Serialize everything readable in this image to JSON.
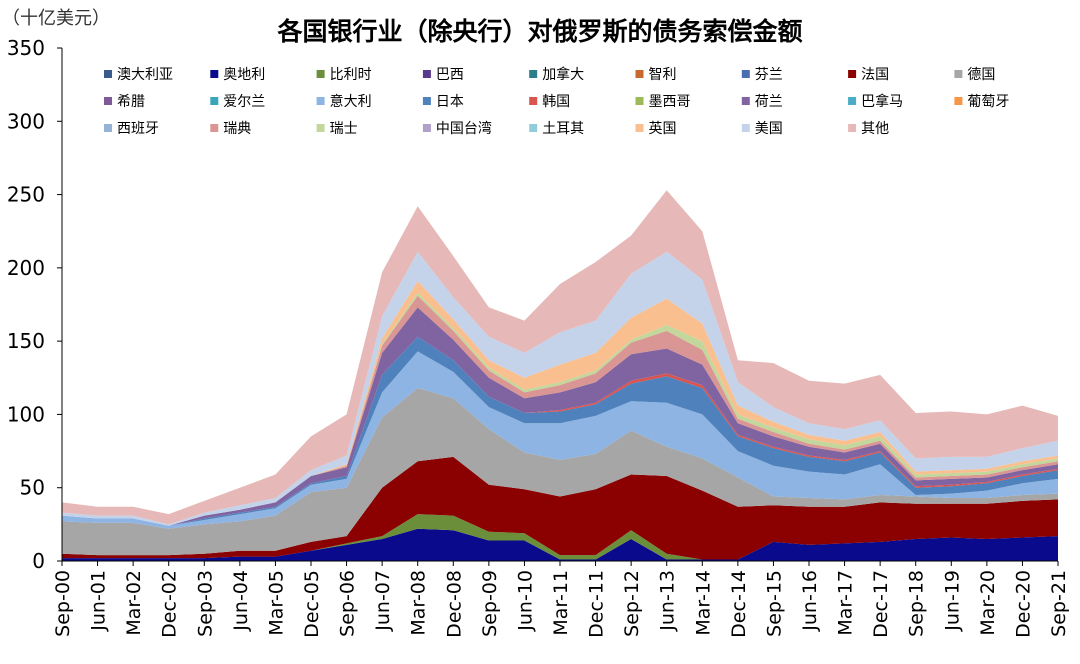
{
  "chart_data": {
    "type": "area",
    "stacked": true,
    "title": "各国银行业（除央行）对俄罗斯的债务索偿金额",
    "unit_label": "（十亿美元）",
    "ylim": [
      0,
      350
    ],
    "yticks": [
      0,
      50,
      100,
      150,
      200,
      250,
      300,
      350
    ],
    "grid": false,
    "legend": "top",
    "x_labels": [
      "Sep-00",
      "Jun-01",
      "Mar-02",
      "Dec-02",
      "Sep-03",
      "Jun-04",
      "Mar-05",
      "Dec-05",
      "Sep-06",
      "Jun-07",
      "Mar-08",
      "Dec-08",
      "Sep-09",
      "Jun-10",
      "Mar-11",
      "Dec-11",
      "Sep-12",
      "Jun-13",
      "Mar-14",
      "Dec-14",
      "Sep-15",
      "Jun-16",
      "Mar-17",
      "Dec-17",
      "Sep-18",
      "Jun-19",
      "Mar-20",
      "Dec-20",
      "Sep-21"
    ],
    "x": [
      0,
      1,
      2,
      3,
      4,
      5,
      6,
      7,
      8,
      9,
      10,
      11,
      12,
      13,
      14,
      15,
      16,
      17,
      18,
      19,
      20,
      21,
      22,
      23,
      24,
      25,
      26,
      27,
      28
    ],
    "series": [
      {
        "name": "澳大利亚",
        "color": "#3a5b8c",
        "values": [
          0,
          0,
          0,
          0,
          0,
          0,
          0,
          0,
          0,
          0,
          0,
          0,
          0,
          0,
          0,
          0,
          0,
          0,
          0,
          0,
          0,
          0,
          0,
          0,
          0,
          0,
          0,
          0,
          0
        ]
      },
      {
        "name": "奥地利",
        "color": "#0a0a8c",
        "values": [
          2,
          2,
          2,
          2,
          2,
          3,
          3,
          7,
          11,
          15,
          22,
          21,
          14,
          14,
          1,
          1,
          15,
          1,
          1,
          1,
          13,
          11,
          12,
          13,
          15,
          16,
          15,
          16,
          17
        ]
      },
      {
        "name": "比利时",
        "color": "#6b8e3a",
        "values": [
          0,
          0,
          0,
          0,
          0,
          0,
          0,
          0,
          1,
          2,
          10,
          10,
          6,
          5,
          3,
          3,
          6,
          4,
          0,
          0,
          0,
          0,
          0,
          0,
          0,
          0,
          0,
          0,
          0
        ]
      },
      {
        "name": "巴西",
        "color": "#5a3a8c",
        "values": [
          0,
          0,
          0,
          0,
          0,
          0,
          0,
          0,
          0,
          0,
          0,
          0,
          0,
          0,
          0,
          0,
          0,
          0,
          0,
          0,
          0,
          0,
          0,
          0,
          0,
          0,
          0,
          0,
          0
        ]
      },
      {
        "name": "加拿大",
        "color": "#2e7d8c",
        "values": [
          0,
          0,
          0,
          0,
          0,
          0,
          0,
          0,
          0,
          0,
          0,
          0,
          0,
          0,
          0,
          0,
          0,
          0,
          0,
          0,
          0,
          0,
          0,
          0,
          0,
          0,
          0,
          0,
          0
        ]
      },
      {
        "name": "智利",
        "color": "#c8692d",
        "values": [
          0,
          0,
          0,
          0,
          0,
          0,
          0,
          0,
          0,
          0,
          0,
          0,
          0,
          0,
          0,
          0,
          0,
          0,
          0,
          0,
          0,
          0,
          0,
          0,
          0,
          0,
          0,
          0,
          0
        ]
      },
      {
        "name": "芬兰",
        "color": "#4a6fb0",
        "values": [
          0,
          0,
          0,
          0,
          0,
          0,
          0,
          0,
          0,
          0,
          0,
          0,
          0,
          0,
          0,
          0,
          0,
          0,
          0,
          0,
          0,
          0,
          0,
          0,
          0,
          0,
          0,
          0,
          0
        ]
      },
      {
        "name": "法国",
        "color": "#8b0000",
        "values": [
          3,
          2,
          2,
          2,
          3,
          4,
          4,
          6,
          5,
          33,
          36,
          40,
          32,
          30,
          40,
          45,
          38,
          53,
          47,
          36,
          25,
          26,
          25,
          27,
          24,
          23,
          24,
          25,
          25
        ]
      },
      {
        "name": "德国",
        "color": "#a6a6a6",
        "values": [
          22,
          22,
          22,
          18,
          20,
          20,
          24,
          34,
          33,
          48,
          50,
          40,
          38,
          25,
          25,
          24,
          30,
          20,
          22,
          20,
          6,
          6,
          5,
          5,
          5,
          4,
          4,
          4,
          4
        ]
      },
      {
        "name": "希腊",
        "color": "#7e5a9b",
        "values": [
          0,
          0,
          0,
          0,
          0,
          0,
          0,
          0,
          0,
          0,
          0,
          0,
          0,
          0,
          0,
          0,
          0,
          0,
          0,
          0,
          0,
          0,
          0,
          0,
          0,
          0,
          0,
          0,
          0
        ]
      },
      {
        "name": "爱尔兰",
        "color": "#3aa6b9",
        "values": [
          0,
          0,
          0,
          0,
          0,
          0,
          0,
          0,
          0,
          0,
          0,
          0,
          0,
          0,
          0,
          0,
          0,
          0,
          0,
          0,
          0,
          0,
          0,
          0,
          0,
          0,
          0,
          0,
          0
        ]
      },
      {
        "name": "意大利",
        "color": "#8db4e2",
        "values": [
          4,
          3,
          3,
          2,
          3,
          5,
          5,
          5,
          6,
          17,
          25,
          18,
          15,
          20,
          25,
          26,
          20,
          30,
          30,
          18,
          21,
          18,
          17,
          21,
          1,
          3,
          5,
          8,
          10
        ]
      },
      {
        "name": "日本",
        "color": "#4f81bd",
        "values": [
          0,
          0,
          0,
          0,
          1,
          1,
          1,
          1,
          2,
          12,
          10,
          8,
          7,
          7,
          8,
          8,
          12,
          18,
          18,
          10,
          12,
          10,
          9,
          8,
          5,
          5,
          5,
          5,
          6
        ]
      },
      {
        "name": "韩国",
        "color": "#d9534f",
        "values": [
          0,
          0,
          0,
          0,
          0,
          0,
          0,
          0,
          0,
          0,
          0,
          0,
          0,
          0,
          1,
          1,
          2,
          2,
          2,
          1,
          1,
          1,
          1,
          1,
          1,
          1,
          1,
          1,
          1
        ]
      },
      {
        "name": "墨西哥",
        "color": "#9bbb59",
        "values": [
          0,
          0,
          0,
          0,
          0,
          0,
          0,
          0,
          0,
          0,
          0,
          0,
          0,
          0,
          0,
          0,
          0,
          0,
          0,
          0,
          0,
          0,
          0,
          0,
          0,
          0,
          0,
          0,
          0
        ]
      },
      {
        "name": "荷兰",
        "color": "#8064a2",
        "values": [
          0,
          0,
          0,
          0,
          2,
          2,
          3,
          5,
          6,
          15,
          20,
          14,
          13,
          10,
          12,
          14,
          18,
          17,
          14,
          8,
          7,
          6,
          5,
          5,
          4,
          4,
          3,
          3,
          3
        ]
      },
      {
        "name": "巴拿马",
        "color": "#4bacc6",
        "values": [
          0,
          0,
          0,
          0,
          0,
          0,
          0,
          0,
          0,
          0,
          0,
          0,
          0,
          0,
          0,
          0,
          0,
          0,
          0,
          0,
          0,
          0,
          0,
          0,
          0,
          0,
          0,
          0,
          0
        ]
      },
      {
        "name": "葡萄牙",
        "color": "#f79646",
        "values": [
          0,
          0,
          0,
          0,
          0,
          0,
          0,
          0,
          0,
          0,
          0,
          0,
          0,
          0,
          0,
          0,
          0,
          0,
          0,
          0,
          0,
          0,
          0,
          0,
          0,
          0,
          0,
          0,
          0
        ]
      },
      {
        "name": "西班牙",
        "color": "#95b3d7",
        "values": [
          0,
          0,
          0,
          0,
          0,
          0,
          0,
          0,
          0,
          0,
          0,
          0,
          0,
          0,
          0,
          0,
          0,
          0,
          0,
          0,
          0,
          0,
          0,
          0,
          0,
          0,
          0,
          0,
          0
        ]
      },
      {
        "name": "瑞典",
        "color": "#da9694",
        "values": [
          0,
          0,
          0,
          0,
          0,
          0,
          0,
          0,
          1,
          5,
          8,
          6,
          5,
          4,
          5,
          6,
          8,
          12,
          10,
          3,
          3,
          2,
          2,
          2,
          2,
          2,
          2,
          2,
          2
        ]
      },
      {
        "name": "瑞士",
        "color": "#c3d69b",
        "values": [
          0,
          0,
          0,
          0,
          0,
          0,
          0,
          0,
          0,
          1,
          2,
          2,
          2,
          2,
          2,
          2,
          2,
          4,
          6,
          3,
          3,
          3,
          3,
          3,
          2,
          2,
          2,
          2,
          2
        ]
      },
      {
        "name": "中国台湾",
        "color": "#b1a0c7",
        "values": [
          0,
          0,
          0,
          0,
          0,
          0,
          0,
          0,
          0,
          0,
          0,
          0,
          0,
          0,
          0,
          0,
          0,
          0,
          0,
          0,
          0,
          0,
          0,
          0,
          0,
          0,
          0,
          0,
          0
        ]
      },
      {
        "name": "土耳其",
        "color": "#92cddc",
        "values": [
          0,
          0,
          0,
          0,
          0,
          0,
          0,
          0,
          0,
          0,
          0,
          0,
          0,
          0,
          0,
          0,
          0,
          0,
          0,
          0,
          0,
          0,
          0,
          0,
          0,
          0,
          0,
          0,
          0
        ]
      },
      {
        "name": "英国",
        "color": "#fabf8f",
        "values": [
          0,
          0,
          0,
          0,
          0,
          0,
          0,
          0,
          1,
          4,
          8,
          6,
          5,
          8,
          12,
          12,
          15,
          18,
          12,
          6,
          4,
          3,
          3,
          3,
          2,
          2,
          2,
          2,
          2
        ]
      },
      {
        "name": "美国",
        "color": "#c5d3ea",
        "values": [
          2,
          2,
          2,
          1,
          2,
          3,
          3,
          4,
          6,
          15,
          20,
          15,
          16,
          17,
          22,
          22,
          30,
          32,
          30,
          16,
          10,
          8,
          8,
          8,
          9,
          9,
          8,
          9,
          10
        ]
      },
      {
        "name": "其他",
        "color": "#e6b8b7",
        "values": [
          7,
          6,
          6,
          7,
          8,
          12,
          16,
          23,
          28,
          30,
          31,
          28,
          20,
          22,
          33,
          40,
          26,
          42,
          33,
          15,
          30,
          29,
          31,
          31,
          31,
          31,
          29,
          29,
          17
        ]
      }
    ]
  }
}
